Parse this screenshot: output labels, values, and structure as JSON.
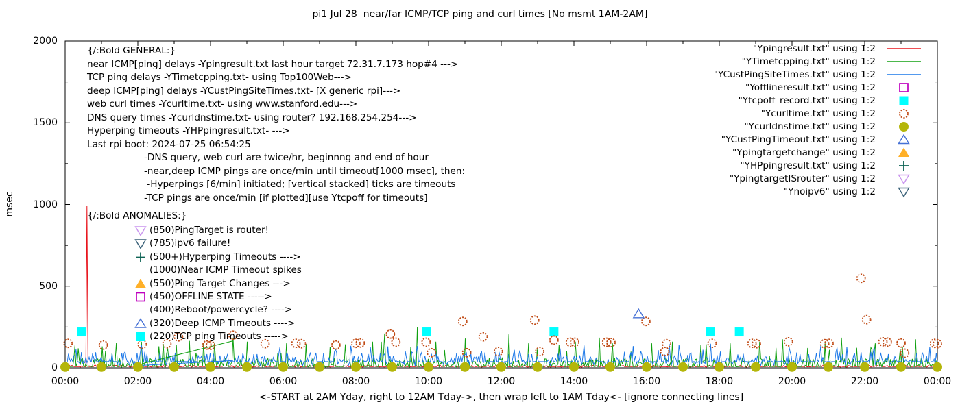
{
  "title": "pi1 Jul 28  near/far ICMP/TCP ping and curl times [No msmt 1AM-2AM]",
  "y_axis": {
    "label": "msec",
    "min": 0,
    "max": 2000,
    "ticks": [
      0,
      500,
      1000,
      1500,
      2000
    ]
  },
  "x_axis": {
    "caption": "<-START at 2AM Yday, right to 12AM Tday->, then wrap left to 1AM Tday<- [ignore connecting lines]",
    "ticks": [
      "00:00",
      "02:00",
      "04:00",
      "06:00",
      "08:00",
      "10:00",
      "12:00",
      "14:00",
      "16:00",
      "18:00",
      "20:00",
      "22:00",
      "00:00"
    ],
    "hours_total": 24
  },
  "annotations": {
    "general_lines": [
      "{/:Bold GENERAL:}",
      "near ICMP[ping] delays -Ypingresult.txt last hour target 72.31.7.173 hop#4 --->",
      "TCP ping delays -YTimetcpping.txt- using Top100Web--->",
      "deep ICMP[ping] delays -YCustPingSiteTimes.txt- [X generic rpi]--->",
      "web curl times -Ycurltime.txt- using www.stanford.edu--->",
      "DNS query times -Ycurldnstime.txt- using router? 192.168.254.254--->",
      "Hyperping timeouts -YHPpingresult.txt- --->",
      "Last rpi boot: 2024-07-25 06:54:25"
    ],
    "note_lines": [
      "-DNS query, web curl are twice/hr, beginnng and end of hour",
      "-near,deep ICMP pings are once/min until timeout[1000 msec], then:",
      " -Hyperpings [6/min] initiated; [vertical stacked] ticks are timeouts",
      "-TCP pings are once/min [if plotted][use Ytcpoff for timeouts]"
    ],
    "anomalies_header": "{/:Bold ANOMALIES:}",
    "anomalies": [
      {
        "marker": "triangle-down-open",
        "color": "#c993ee",
        "text": "(850)PingTarget is router!"
      },
      {
        "marker": "triangle-down-open",
        "color": "#3a6178",
        "text": "(785)ipv6 failure!"
      },
      {
        "marker": "plus",
        "color": "#0f6455",
        "text": "(500+)Hyperping Timeouts ---->"
      },
      {
        "marker": "none",
        "color": "",
        "text": "(1000)Near ICMP Timeout spikes"
      },
      {
        "marker": "triangle-up-filled",
        "color": "#ffb028",
        "text": "(550)Ping Target Changes --->"
      },
      {
        "marker": "square-open",
        "color": "#bf00bf",
        "text": "(450)OFFLINE STATE ----->"
      },
      {
        "marker": "none",
        "color": "",
        "text": "(400)Reboot/powercycle? ---->"
      },
      {
        "marker": "triangle-up-open",
        "color": "#4671d5",
        "text": "(320)Deep ICMP Timeouts ---->"
      },
      {
        "marker": "square-filled",
        "color": "#00ffff",
        "text": "(220)TCP ping Timeouts ----->"
      }
    ]
  },
  "chart_data": {
    "type": "line+scatter",
    "x_unit": "hour_of_day",
    "y_unit": "msec",
    "x_range": [
      0,
      24
    ],
    "y_range": [
      0,
      2000
    ],
    "grid": false,
    "legend_position": "top-right",
    "series": [
      {
        "name": "Ypingresult.txt",
        "label": "\"Ypingresult.txt\" using 1:2",
        "type": "line",
        "color": "#e8141c",
        "noise": {
          "flat": 7,
          "flat_p": 0.5,
          "lo": 4,
          "hi": 16,
          "spike_p": 0,
          "spike_lo": 0,
          "spike_hi": 0
        },
        "spikes": [
          [
            0.594,
            990
          ]
        ]
      },
      {
        "name": "YTimetcpping.txt",
        "label": "\"YTimetcpping.txt\" using 1:2",
        "type": "line",
        "color": "#10a010",
        "noise": {
          "flat": 8,
          "flat_p": 0.45,
          "lo": 4,
          "hi": 60,
          "spike_p": 0.06,
          "spike_lo": 60,
          "spike_hi": 170
        },
        "spikes": [
          [
            0.35,
            120
          ],
          [
            1.3,
            90
          ],
          [
            2.1,
            160
          ],
          [
            3.05,
            140
          ],
          [
            3.8,
            150
          ],
          [
            4.1,
            150
          ],
          [
            4.62,
            185
          ],
          [
            5.0,
            160
          ],
          [
            6.1,
            150
          ],
          [
            7.3,
            130
          ],
          [
            8.45,
            160
          ],
          [
            8.8,
            210
          ],
          [
            9.7,
            250
          ],
          [
            10.2,
            160
          ],
          [
            11.0,
            180
          ],
          [
            12.2,
            205
          ],
          [
            12.75,
            150
          ],
          [
            13.6,
            140
          ],
          [
            14.05,
            160
          ],
          [
            14.7,
            185
          ],
          [
            15.05,
            150
          ],
          [
            16.15,
            150
          ],
          [
            16.7,
            160
          ],
          [
            17.5,
            140
          ],
          [
            18.3,
            150
          ],
          [
            19.1,
            160
          ],
          [
            19.75,
            175
          ],
          [
            20.9,
            150
          ],
          [
            21.35,
            185
          ],
          [
            22.3,
            150
          ],
          [
            23.4,
            175
          ]
        ]
      },
      {
        "name": "YCustPingSiteTimes.txt",
        "label": "\"YCustPingSiteTimes.txt\" using 1:2",
        "type": "line",
        "color": "#1c78e8",
        "noise": {
          "flat": 38,
          "flat_p": 0.5,
          "lo": 12,
          "hi": 100,
          "spike_p": 0.04,
          "spike_lo": 100,
          "spike_hi": 150
        },
        "spikes": []
      },
      {
        "name": "Yofflineresult.txt",
        "label": "\"Yofflineresult.txt\" using 1:2",
        "type": "points",
        "marker": "square-open",
        "color": "#bf00bf",
        "points": []
      },
      {
        "name": "Ytcpoff_record.txt",
        "label": "\"Ytcpoff_record.txt\" using 1:2",
        "type": "points",
        "marker": "square-filled",
        "color": "#00ffff",
        "points": [
          [
            0.45,
            220
          ],
          [
            9.95,
            220
          ],
          [
            13.45,
            220
          ],
          [
            17.75,
            220
          ],
          [
            18.55,
            220
          ]
        ]
      },
      {
        "name": "Ycurltime.txt",
        "label": "\"Ycurltime.txt\" using 1:2",
        "type": "points",
        "marker": "circle-open",
        "color": "#c04a14",
        "points": [
          [
            0.08,
            150
          ],
          [
            1.05,
            140
          ],
          [
            2.12,
            145
          ],
          [
            2.8,
            148
          ],
          [
            3.12,
            190
          ],
          [
            3.9,
            140
          ],
          [
            4.0,
            138
          ],
          [
            4.62,
            200
          ],
          [
            5.5,
            148
          ],
          [
            6.35,
            150
          ],
          [
            6.5,
            148
          ],
          [
            7.45,
            140
          ],
          [
            8.0,
            150
          ],
          [
            8.12,
            152
          ],
          [
            8.95,
            207
          ],
          [
            9.1,
            157
          ],
          [
            9.93,
            157
          ],
          [
            10.08,
            93
          ],
          [
            10.94,
            284
          ],
          [
            11.05,
            93
          ],
          [
            11.5,
            190
          ],
          [
            11.92,
            100
          ],
          [
            12.92,
            292
          ],
          [
            13.06,
            100
          ],
          [
            13.45,
            170
          ],
          [
            13.9,
            157
          ],
          [
            14.02,
            157
          ],
          [
            14.9,
            157
          ],
          [
            15.02,
            155
          ],
          [
            15.98,
            284
          ],
          [
            16.5,
            100
          ],
          [
            16.55,
            148
          ],
          [
            17.8,
            150
          ],
          [
            18.9,
            150
          ],
          [
            19.02,
            148
          ],
          [
            19.9,
            160
          ],
          [
            20.9,
            148
          ],
          [
            21.02,
            150
          ],
          [
            21.9,
            548
          ],
          [
            22.05,
            295
          ],
          [
            22.5,
            160
          ],
          [
            22.62,
            158
          ],
          [
            23.0,
            152
          ],
          [
            23.1,
            90
          ],
          [
            23.92,
            150
          ],
          [
            24.0,
            148
          ]
        ]
      },
      {
        "name": "Ycurldnstime.txt",
        "label": "\"Ycurldnstime.txt\" using 1:2",
        "type": "points",
        "marker": "circle-filled",
        "color": "#b4b60a",
        "points": [
          [
            0,
            5
          ],
          [
            1,
            5
          ],
          [
            2,
            5
          ],
          [
            3,
            5
          ],
          [
            4,
            5
          ],
          [
            5,
            5
          ],
          [
            6,
            5
          ],
          [
            7,
            5
          ],
          [
            8,
            5
          ],
          [
            9,
            5
          ],
          [
            10,
            5
          ],
          [
            11,
            5
          ],
          [
            12,
            5
          ],
          [
            13,
            5
          ],
          [
            14,
            5
          ],
          [
            15,
            5
          ],
          [
            16,
            5
          ],
          [
            17,
            5
          ],
          [
            18,
            5
          ],
          [
            19,
            5
          ],
          [
            20,
            5
          ],
          [
            21,
            5
          ],
          [
            22,
            5
          ],
          [
            23,
            5
          ],
          [
            24,
            5
          ]
        ]
      },
      {
        "name": "YCustPingTimeout.txt",
        "label": "\"YCustPingTimeout.txt\" using 1:2",
        "type": "points",
        "marker": "triangle-up-open",
        "color": "#4671d5",
        "points": [
          [
            15.78,
            330
          ]
        ]
      },
      {
        "name": "Ypingtargetchange",
        "label": "\"Ypingtargetchange\" using 1:2",
        "type": "points",
        "marker": "triangle-up-filled",
        "color": "#ffb028",
        "points": []
      },
      {
        "name": "YHPpingresult.txt",
        "label": "\"YHPpingresult.txt\" using 1:2",
        "type": "points",
        "marker": "plus",
        "color": "#0f6455",
        "points": []
      },
      {
        "name": "YpingtargetISrouter",
        "label": "\"YpingtargetISrouter\" using 1:2",
        "type": "points",
        "marker": "triangle-down-open",
        "color": "#c993ee",
        "points": []
      },
      {
        "name": "Ynoipv6",
        "label": "\"Ynoipv6\" using 1:2",
        "type": "points",
        "marker": "triangle-down-open",
        "color": "#3a6178",
        "points": []
      }
    ],
    "connecting_segments": [
      {
        "series": "YTimetcpping.txt",
        "color": "#10a010",
        "from": [
          2.11,
          25
        ],
        "to": [
          4.62,
          165
        ]
      },
      {
        "series": "YCustPingSiteTimes.txt",
        "color": "#1c78e8",
        "from": [
          2.11,
          15
        ],
        "to": [
          4.62,
          45
        ]
      }
    ],
    "noise_seed": 12345
  }
}
